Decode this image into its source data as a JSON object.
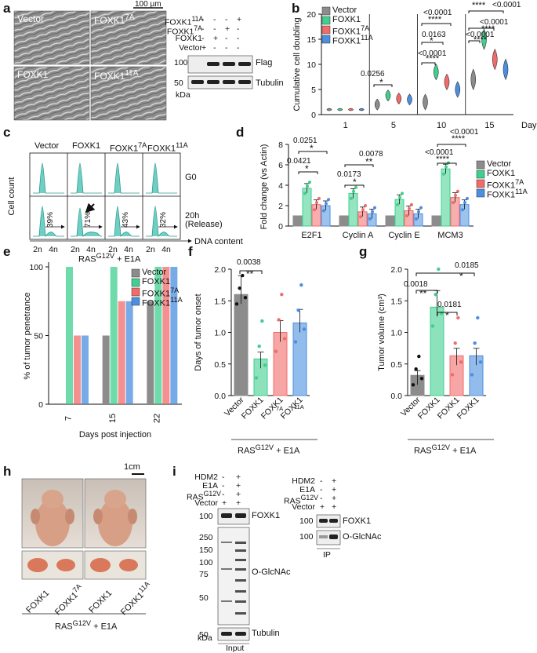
{
  "colors": {
    "vector": "#8c8c8c",
    "foxk1": "#3fcf8e",
    "f7a": "#f26b6b",
    "f11a": "#4a8fe0",
    "teal": "#3fbfb0"
  },
  "panel_labels": {
    "a": "a",
    "b": "b",
    "c": "c",
    "d": "d",
    "e": "e",
    "f": "f",
    "g": "g",
    "h": "h",
    "i": "i"
  },
  "a": {
    "scale_bar": "100 µm",
    "micrographs": [
      "Vector",
      "FOXK1<sup>7A</sup>",
      "FOXK1",
      "FOXK1<sup>11A</sup>"
    ],
    "rows": [
      {
        "label": "FOXK1<sup>11A</sup>",
        "cells": [
          "-",
          "-",
          "-",
          "+"
        ]
      },
      {
        "label": "FOXK1<sup>7A</sup>",
        "cells": [
          "-",
          "-",
          "+",
          "-"
        ]
      },
      {
        "label": "FOXK1",
        "cells": [
          "-",
          "+",
          "-",
          "-"
        ]
      },
      {
        "label": "Vector",
        "cells": [
          "+",
          "-",
          "-",
          "-"
        ]
      }
    ],
    "blots": [
      {
        "mw": "100",
        "name": "Flag"
      },
      {
        "mw": "50",
        "name": "Tubulin"
      }
    ],
    "kda": "kDa"
  },
  "b": {
    "legend": [
      "Vector",
      "FOXK1",
      "FOXK1<sup>7A</sup>",
      "FOXK1<sup>11A</sup>"
    ],
    "pvals": [
      "0.0256",
      "*",
      "<0.0001",
      "****",
      "0.0163",
      "*",
      "<0.0001",
      "****",
      "<0.0001",
      "****",
      "<0.0001",
      "****",
      "<0.0001"
    ],
    "chart_data": {
      "type": "violin",
      "ylabel": "Cumulative cell doubling",
      "xlabel": "Days",
      "categories": [
        "1",
        "5",
        "10",
        "15"
      ],
      "yticks": [
        "0",
        "5",
        "10",
        "15",
        "20"
      ],
      "ylim": [
        0,
        20
      ],
      "series": [
        {
          "name": "Vector",
          "values": [
            1,
            2,
            2.5,
            7
          ]
        },
        {
          "name": "FOXK1",
          "values": [
            1,
            3.8,
            8.5,
            15
          ]
        },
        {
          "name": "FOXK1 7A",
          "values": [
            1,
            3.2,
            6.5,
            11
          ]
        },
        {
          "name": "FOXK1 11A",
          "values": [
            1,
            3.0,
            5,
            9
          ]
        }
      ]
    }
  },
  "c": {
    "columns": [
      "Vector",
      "FOXK1",
      "FOXK1<sup>7A</sup>",
      "FOXK1<sup>11A</sup>"
    ],
    "rows": [
      "G0",
      "20h<br>(Release)"
    ],
    "percents": [
      "39%",
      "71%",
      "43%",
      "32%"
    ],
    "ylabel": "Cell count",
    "xlabel": "DNA content",
    "x2n": "2n",
    "x4n": "4n"
  },
  "d": {
    "legend": [
      "Vector",
      "FOXK1",
      "FOXK1<sup>7A</sup>",
      "FOXK1<sup>11A</sup>"
    ],
    "pvals": [
      "0.0251",
      "*",
      "0.0421",
      "*",
      "0.0173",
      "*",
      "0.0078",
      "**",
      "<0.0001",
      "****",
      "<0.0001",
      "****"
    ],
    "chart_data": {
      "type": "bar",
      "ylabel": "Fold change (vs Actin)",
      "categories": [
        "E2F1",
        "Cyclin A",
        "Cyclin E",
        "MCM3"
      ],
      "yticks": [
        "0",
        "2",
        "4",
        "6",
        "8"
      ],
      "ylim": [
        0,
        8
      ],
      "series": [
        {
          "name": "Vector",
          "values": [
            1,
            1,
            1,
            1
          ]
        },
        {
          "name": "FOXK1",
          "values": [
            3.7,
            3.2,
            2.6,
            5.6
          ]
        },
        {
          "name": "FOXK1 7A",
          "values": [
            2.1,
            1.4,
            1.5,
            2.8
          ]
        },
        {
          "name": "FOXK1 11A",
          "values": [
            2.0,
            1.2,
            1.2,
            2.1
          ]
        }
      ]
    }
  },
  "e": {
    "title": "RAS<sup>G12V</sup> + E1A",
    "legend": [
      "Vector",
      "FOXK1",
      "FOXK1<sup>7A</sup>",
      "FOXK1<sup>11A</sup>"
    ],
    "chart_data": {
      "type": "bar",
      "ylabel": "% of tumor penetrance",
      "xlabel": "Days post injection",
      "categories": [
        "7",
        "15",
        "22"
      ],
      "yticks": [
        "0",
        "50",
        "100"
      ],
      "ylim": [
        0,
        100
      ],
      "series": [
        {
          "name": "Vector",
          "values": [
            0,
            50,
            75
          ]
        },
        {
          "name": "FOXK1",
          "values": [
            100,
            100,
            100
          ]
        },
        {
          "name": "FOXK1 7A",
          "values": [
            50,
            75,
            100
          ]
        },
        {
          "name": "FOXK1 11A",
          "values": [
            50,
            75,
            100
          ]
        }
      ]
    }
  },
  "f": {
    "pvals": [
      "0.0038",
      "**"
    ],
    "footer": "RAS<sup>G12V</sup> + E1A",
    "chart_data": {
      "type": "bar",
      "ylabel": "Days of tumor onset",
      "categories": [
        "Vector",
        "FOXK1",
        "FOXK1 7A",
        "FOXK1 11A"
      ],
      "yticks": [
        "0.0",
        "0.5",
        "1.0",
        "1.5",
        "2.0"
      ],
      "ylim": [
        0,
        2
      ],
      "values": [
        1.6,
        0.58,
        1.0,
        1.15
      ]
    }
  },
  "g": {
    "pvals": [
      "0.0185",
      "*",
      "0.0018",
      "**",
      "0.0181",
      "*"
    ],
    "footer": "RAS<sup>G12V</sup> + E1A",
    "chart_data": {
      "type": "bar",
      "ylabel": "Tumor volume (cm³)",
      "categories": [
        "Vector",
        "FOXK1",
        "FOXK1 7A",
        "FOXK1 11A"
      ],
      "yticks": [
        "0.0",
        "0.5",
        "1.0",
        "1.5",
        "2.0"
      ],
      "ylim": [
        0,
        2
      ],
      "values": [
        0.32,
        1.4,
        0.63,
        0.63
      ]
    }
  },
  "h": {
    "scale": "1cm",
    "labels": [
      "FOXK1",
      "FOXK1<sup>7A</sup>",
      "FOXK1",
      "FOXK1<sup>11A</sup>"
    ],
    "footer": "RAS<sup>G12V</sup> + E1A"
  },
  "i": {
    "rows": [
      {
        "label": "HDM2",
        "cells": [
          "-",
          "+"
        ]
      },
      {
        "label": "E1A",
        "cells": [
          "-",
          "+"
        ]
      },
      {
        "label": "RAS<sup>G12V</sup>",
        "cells": [
          "-",
          "+"
        ]
      },
      {
        "label": "Vector",
        "cells": [
          "+",
          "+"
        ]
      }
    ],
    "input_bands": [
      {
        "mw": [
          "100"
        ],
        "name": "FOXK1"
      },
      {
        "mw": [
          "250",
          "150",
          "100",
          "75",
          "50"
        ],
        "name": "O-GlcNAc"
      },
      {
        "mw": [
          "50"
        ],
        "name": "Tubulin"
      }
    ],
    "ip_bands": [
      {
        "mw": [
          "100"
        ],
        "name": "FOXK1"
      },
      {
        "mw": [
          "100"
        ],
        "name": "O-GlcNAc"
      }
    ],
    "kda": "kDa",
    "input": "Input",
    "ip": "IP"
  }
}
